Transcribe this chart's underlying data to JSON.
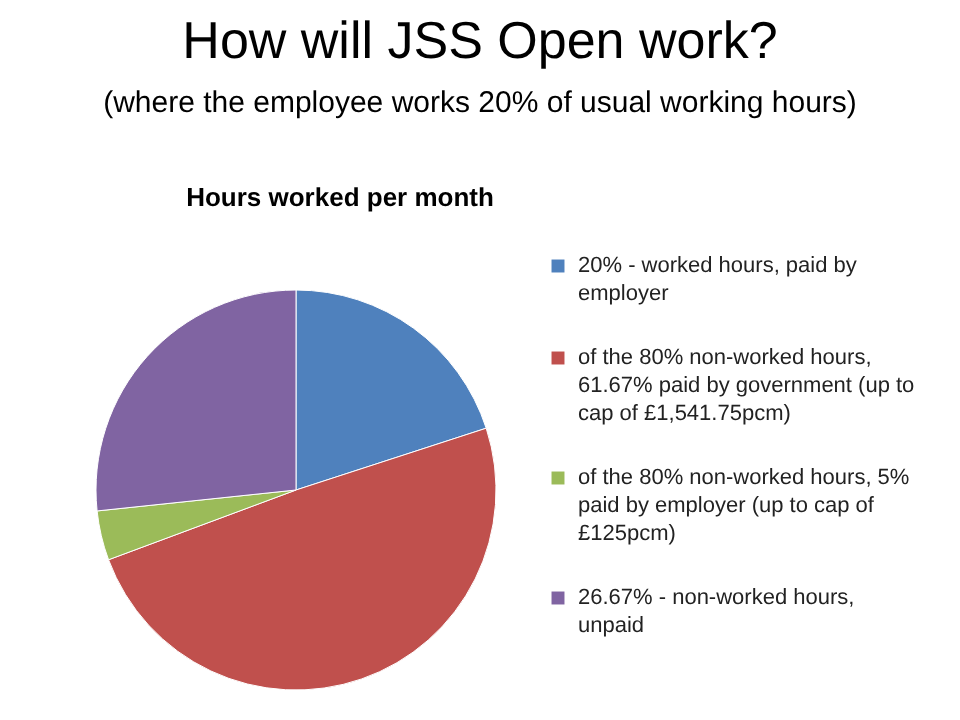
{
  "chart_data": {
    "type": "pie",
    "title": "How will JSS Open work?",
    "subtitle": "(where the employee works 20% of usual working hours)",
    "annotations": [
      "Hours worked per month"
    ],
    "categories": [
      "20% - worked hours, paid by employer",
      "of the 80% non-worked hours, 61.67% paid by government (up to cap of £1,541.75pcm)",
      "of the 80% non-worked hours, 5% paid by employer (up to cap of £125pcm)",
      "26.67% - non-worked hours, unpaid"
    ],
    "values": [
      20,
      49.33,
      4,
      26.67
    ],
    "colors": [
      "#4f81bd",
      "#c0504d",
      "#9bbb59",
      "#8064a2"
    ],
    "legend": "right"
  }
}
